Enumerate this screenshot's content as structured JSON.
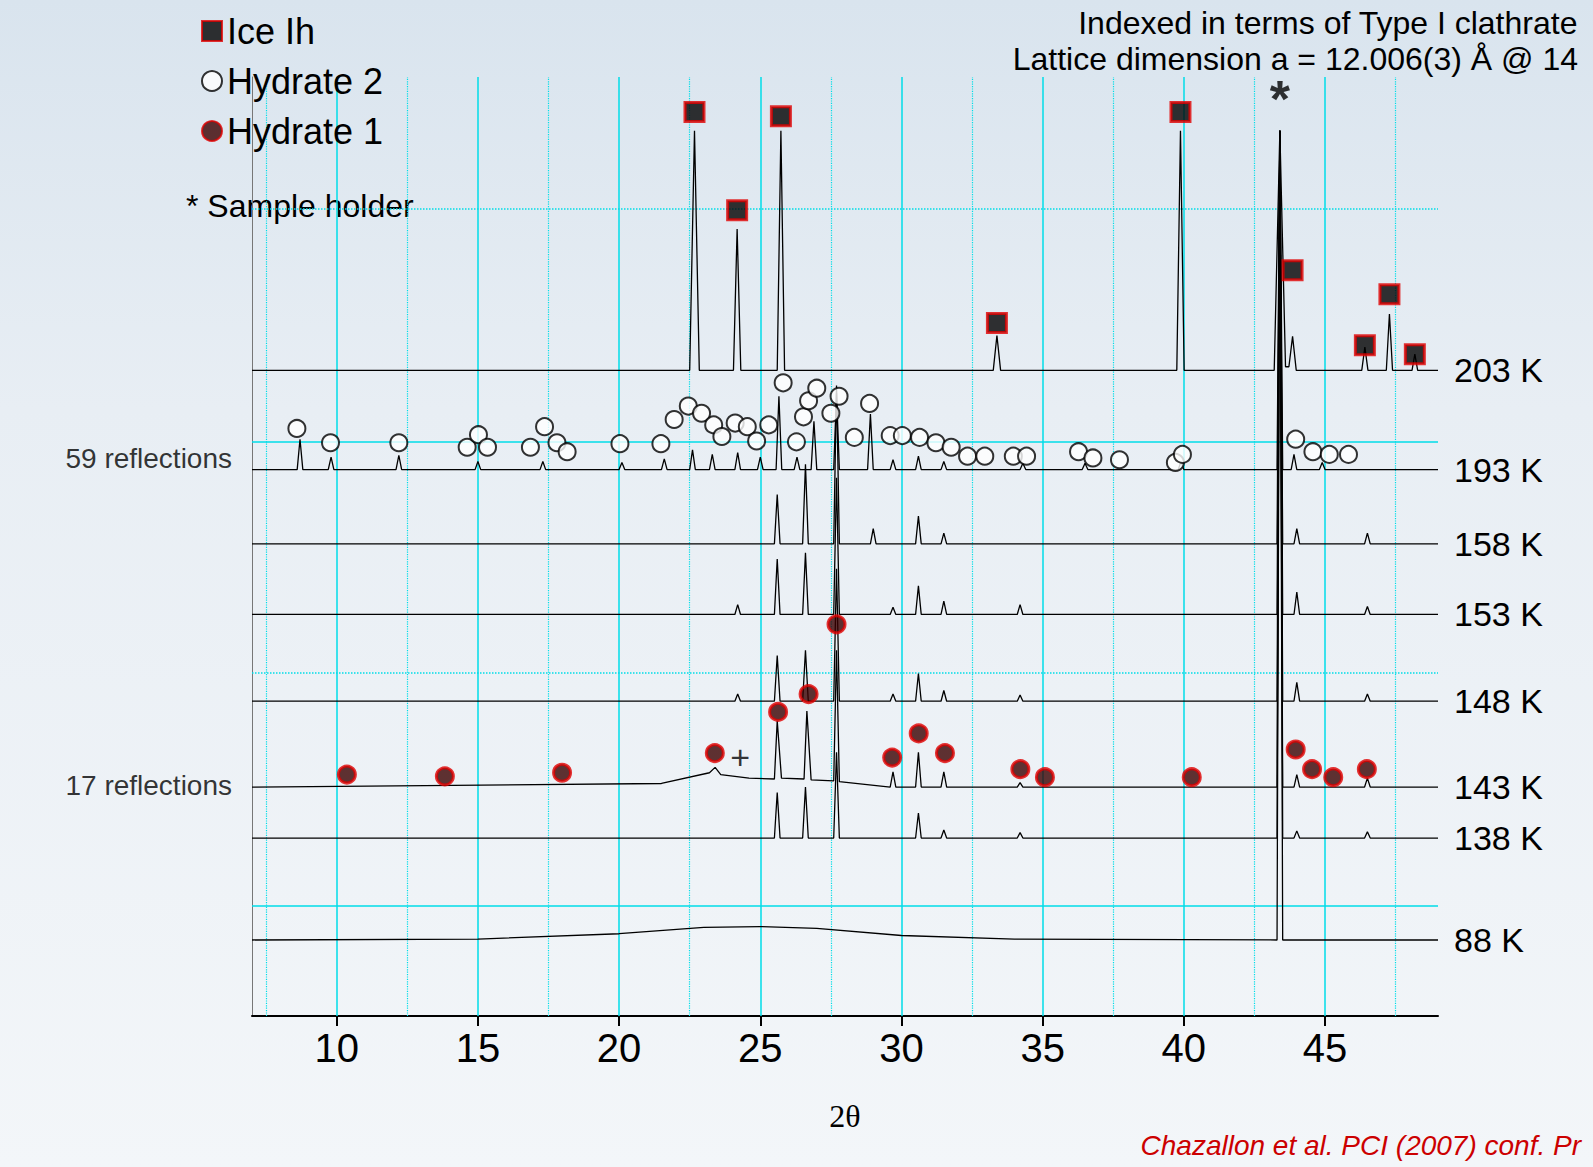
{
  "chart_data": {
    "type": "line",
    "title": "Indexed in terms of Type I clathrate",
    "subtitle": "Lattice dimension a = 12.006(3) Å @ 14",
    "source": "Chazallon et al. PCI (2007) conf. Pr",
    "x_label": "2θ",
    "xlim": [
      7,
      49
    ],
    "xticks": [
      10,
      15,
      20,
      25,
      30,
      35,
      40,
      45
    ],
    "ylim": [
      0,
      105
    ],
    "yticks": [
      12.3,
      38.4,
      64.2,
      90.3
    ],
    "tick_labels": "x",
    "grid": true,
    "legend": "upper left",
    "legend_note": "* Sample holder",
    "annotations": [
      {
        "text": "59 reflections",
        "x": 7,
        "y": 62.3
      },
      {
        "text": "17 reflections",
        "x": 7,
        "y": 25.8
      },
      {
        "text": "*",
        "x": 43.4,
        "y": 102.5
      },
      {
        "text": "+",
        "x": 24.29,
        "y": 29.0
      }
    ],
    "series": [
      {
        "name": "203 K",
        "type": "line",
        "color": "#000000",
        "x": [
          7,
          22.5,
          22.67,
          22.84,
          24.05,
          24.18,
          24.31,
          25.6,
          25.73,
          25.86,
          33.25,
          33.38,
          33.51,
          39.75,
          39.88,
          40.01,
          43.2,
          43.4,
          43.6,
          43.72,
          43.85,
          43.98,
          46.3,
          46.41,
          46.52,
          47.17,
          47.28,
          47.39,
          48.08,
          48.18,
          48.28,
          49
        ],
        "values": [
          72.2,
          72.2,
          99,
          72.2,
          72.2,
          88,
          72.2,
          72.2,
          99,
          72.2,
          72.2,
          76.1,
          72.2,
          72.2,
          99,
          72.2,
          72.2,
          99,
          72.6,
          72.6,
          76,
          72.2,
          72.2,
          74.8,
          72.2,
          72.2,
          78.5,
          72.2,
          72.2,
          74.0,
          72.2,
          72.2
        ]
      },
      {
        "name": "193 K",
        "type": "line",
        "color": "#000000",
        "x": [
          7,
          8.6,
          8.7,
          8.8,
          9.7,
          9.8,
          9.9,
          12.1,
          12.2,
          12.3,
          14.9,
          15.0,
          15.1,
          17.2,
          17.3,
          17.4,
          20.0,
          20.1,
          20.2,
          21.5,
          21.6,
          21.7,
          22.5,
          22.6,
          22.7,
          23.2,
          23.3,
          23.4,
          24.1,
          24.2,
          24.3,
          24.9,
          25.0,
          25.1,
          25.56,
          25.66,
          25.76,
          26.2,
          26.3,
          26.4,
          26.8,
          26.9,
          27.0,
          27.6,
          27.7,
          27.8,
          28.8,
          28.9,
          29.0,
          29.6,
          29.7,
          29.8,
          30.5,
          30.6,
          30.7,
          31.4,
          31.5,
          31.6,
          34.2,
          34.3,
          34.4,
          36.4,
          36.5,
          36.6,
          39.8,
          39.9,
          40.0,
          43.3,
          43.4,
          43.5,
          43.8,
          43.9,
          44.0,
          44.8,
          44.9,
          45.0,
          49
        ],
        "values": [
          61.1,
          61.1,
          64.5,
          61.1,
          61.1,
          62.5,
          61.1,
          61.1,
          62.7,
          61.1,
          61.1,
          62.0,
          61.1,
          61.1,
          62.0,
          61.1,
          61.1,
          61.9,
          61.1,
          61.1,
          62.3,
          61.1,
          61.1,
          63.3,
          61.1,
          61.1,
          62.8,
          61.1,
          61.1,
          63.0,
          61.1,
          61.1,
          62.5,
          61.1,
          61.1,
          69.3,
          61.1,
          61.1,
          62.5,
          61.1,
          61.1,
          66.5,
          61.1,
          61.1,
          69.7,
          61.1,
          61.1,
          67.3,
          61.1,
          61.1,
          62.2,
          61.1,
          61.1,
          62.6,
          61.1,
          61.1,
          62.0,
          61.1,
          61.1,
          61.8,
          61.1,
          61.1,
          61.8,
          61.1,
          61.1,
          62.0,
          61.1,
          61.1,
          99,
          61.1,
          61.1,
          62.8,
          61.1,
          61.1,
          61.9,
          61.1,
          61.1
        ]
      },
      {
        "name": "158 K",
        "type": "line",
        "color": "#000000",
        "x": [
          7,
          25.5,
          25.6,
          25.7,
          26.5,
          26.6,
          26.7,
          27.6,
          27.7,
          27.8,
          28.9,
          29.0,
          29.1,
          30.5,
          30.6,
          30.7,
          31.4,
          31.5,
          31.6,
          43.3,
          43.4,
          43.5,
          43.9,
          44.0,
          44.1,
          46.4,
          46.5,
          46.6,
          49
        ],
        "values": [
          52.8,
          52.8,
          58.3,
          52.8,
          52.8,
          61.7,
          52.8,
          52.8,
          70.5,
          52.8,
          52.8,
          54.5,
          52.8,
          52.8,
          55.9,
          52.8,
          52.8,
          54.0,
          52.8,
          52.8,
          99,
          52.8,
          52.8,
          54.5,
          52.8,
          52.8,
          54.0,
          52.8,
          52.8
        ]
      },
      {
        "name": "153 K",
        "type": "line",
        "color": "#000000",
        "x": [
          7,
          24.1,
          24.2,
          24.3,
          25.5,
          25.6,
          25.7,
          26.5,
          26.6,
          26.7,
          27.6,
          27.7,
          27.8,
          29.6,
          29.7,
          29.8,
          30.5,
          30.6,
          30.7,
          31.4,
          31.5,
          31.6,
          34.1,
          34.2,
          34.3,
          43.3,
          43.4,
          43.5,
          43.9,
          44.0,
          44.1,
          46.4,
          46.5,
          46.6,
          49
        ],
        "values": [
          44.9,
          44.9,
          46.0,
          44.9,
          44.9,
          51.1,
          44.9,
          44.9,
          51.8,
          44.9,
          44.9,
          60.2,
          44.9,
          44.9,
          45.7,
          44.9,
          44.9,
          48.1,
          44.9,
          44.9,
          46.4,
          44.9,
          44.9,
          46.0,
          44.9,
          44.9,
          99,
          44.9,
          44.9,
          47.4,
          44.9,
          44.9,
          45.8,
          44.9,
          44.9
        ]
      },
      {
        "name": "148 K",
        "type": "line",
        "color": "#000000",
        "x": [
          7,
          24.1,
          24.2,
          24.3,
          25.5,
          25.6,
          25.7,
          26.5,
          26.6,
          26.7,
          27.6,
          27.7,
          27.8,
          29.6,
          29.7,
          29.8,
          30.5,
          30.6,
          30.7,
          31.4,
          31.5,
          31.6,
          34.1,
          34.2,
          34.3,
          43.3,
          43.4,
          43.5,
          43.9,
          44.0,
          44.1,
          46.4,
          46.5,
          46.6,
          49
        ],
        "values": [
          35.2,
          35.2,
          36.0,
          35.2,
          35.2,
          40.3,
          35.2,
          35.2,
          40.9,
          35.2,
          35.2,
          50.0,
          35.2,
          35.2,
          36.0,
          35.2,
          35.2,
          38.3,
          35.2,
          35.2,
          36.4,
          35.2,
          35.2,
          35.9,
          35.2,
          35.2,
          99,
          35.2,
          35.2,
          37.3,
          35.2,
          35.2,
          36.0,
          35.2,
          35.2
        ]
      },
      {
        "name": "143 K",
        "type": "line",
        "color": "#000000",
        "x": [
          7,
          21.5,
          23.2,
          23.4,
          23.6,
          24.6,
          25.5,
          25.6,
          25.75,
          26.55,
          26.65,
          26.8,
          27.6,
          27.7,
          27.8,
          29.6,
          29.7,
          29.8,
          30.5,
          30.6,
          30.7,
          31.4,
          31.5,
          31.6,
          34.1,
          34.2,
          34.3,
          43.3,
          43.4,
          43.5,
          43.9,
          44.0,
          44.1,
          46.4,
          46.5,
          46.6,
          49
        ],
        "values": [
          25.6,
          26.0,
          27.2,
          27.8,
          27.0,
          26.6,
          26.5,
          33.0,
          26.6,
          26.5,
          34.1,
          26.4,
          26.3,
          40.9,
          26.2,
          25.6,
          27.3,
          25.6,
          25.6,
          29.5,
          25.6,
          25.6,
          27.3,
          25.6,
          25.6,
          26.1,
          25.6,
          25.6,
          99,
          25.6,
          25.6,
          27.0,
          25.6,
          25.6,
          26.6,
          25.6,
          25.6
        ]
      },
      {
        "name": "138 K",
        "type": "line",
        "color": "#000000",
        "x": [
          7,
          25.5,
          25.6,
          25.7,
          26.5,
          26.6,
          26.7,
          27.6,
          27.7,
          27.8,
          30.5,
          30.6,
          30.7,
          31.4,
          31.5,
          31.6,
          34.1,
          34.2,
          34.3,
          43.3,
          43.4,
          43.5,
          43.9,
          44.0,
          44.1,
          46.4,
          46.5,
          46.6,
          49
        ],
        "values": [
          19.9,
          19.9,
          25.0,
          19.9,
          19.9,
          25.6,
          19.9,
          19.9,
          29.5,
          19.9,
          19.9,
          22.7,
          19.9,
          19.9,
          20.8,
          19.9,
          19.9,
          20.5,
          19.9,
          19.9,
          99,
          19.9,
          19.9,
          20.7,
          19.9,
          19.9,
          20.6,
          19.9,
          19.9
        ]
      },
      {
        "name": "88 K",
        "type": "line",
        "color": "#000000",
        "x": [
          7,
          15,
          20,
          23,
          25,
          27,
          30,
          34,
          43.3,
          43.4,
          43.5,
          49
        ],
        "values": [
          8.5,
          8.6,
          9.2,
          9.9,
          10.0,
          9.8,
          9.0,
          8.6,
          8.5,
          99,
          8.5,
          8.5
        ]
      },
      {
        "name": "Ice Ih",
        "type": "scatter",
        "marker": "square",
        "color": "#000000",
        "x": [
          22.67,
          25.73,
          24.18,
          33.38,
          39.88,
          43.85,
          47.28,
          46.41,
          48.18
        ],
        "values": [
          101.1,
          100.6,
          90.1,
          77.5,
          101.1,
          83.4,
          80.7,
          75.0,
          74.0
        ]
      },
      {
        "name": "Hydrate 2",
        "type": "scatter",
        "marker": "circle_open",
        "color": "#000000",
        "x": [
          8.59,
          9.78,
          12.2,
          14.62,
          15.02,
          15.34,
          16.86,
          17.36,
          17.8,
          18.16,
          20.03,
          21.48,
          21.95,
          22.45,
          22.92,
          23.35,
          23.64,
          24.11,
          24.54,
          24.87,
          25.3,
          25.81,
          26.28,
          26.53,
          26.71,
          27.0,
          27.5,
          27.79,
          28.33,
          28.87,
          29.6,
          30.03,
          30.64,
          31.22,
          31.76,
          32.34,
          32.95,
          33.96,
          34.43,
          36.27,
          36.78,
          37.72,
          39.7,
          39.95,
          43.96,
          44.57,
          45.15,
          45.83
        ],
        "values": [
          65.7,
          64.1,
          64.1,
          63.6,
          65.0,
          63.6,
          63.6,
          65.9,
          64.1,
          63.1,
          64.0,
          64.0,
          66.7,
          68.2,
          67.4,
          66.1,
          64.8,
          66.3,
          65.9,
          64.3,
          66.1,
          70.8,
          64.2,
          67.0,
          68.8,
          70.2,
          67.4,
          69.3,
          64.7,
          68.5,
          64.9,
          64.9,
          64.7,
          64.1,
          63.6,
          62.6,
          62.6,
          62.6,
          62.6,
          63.1,
          62.4,
          62.2,
          61.9,
          62.8,
          64.5,
          63.1,
          62.8,
          62.8
        ]
      },
      {
        "name": "Hydrate 1",
        "type": "scatter",
        "marker": "circle",
        "color": "#3a0000",
        "x": [
          27.7,
          25.63,
          26.71,
          10.36,
          13.83,
          17.98,
          23.39,
          29.67,
          30.61,
          31.54,
          34.21,
          35.08,
          40.28,
          43.96,
          44.54,
          45.29,
          46.48
        ],
        "values": [
          43.8,
          34.0,
          36.0,
          27.0,
          26.8,
          27.2,
          29.4,
          28.9,
          31.6,
          29.4,
          27.6,
          26.7,
          26.7,
          29.8,
          27.6,
          26.7,
          27.6
        ]
      }
    ]
  }
}
